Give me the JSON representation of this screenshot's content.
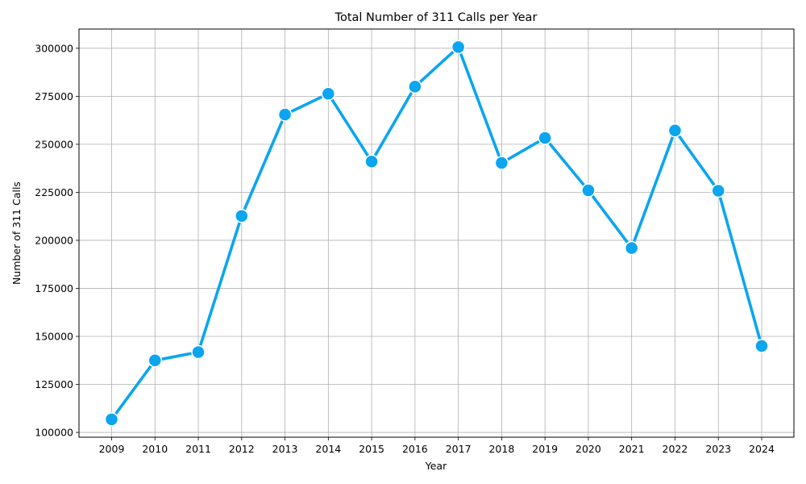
{
  "chart_data": {
    "type": "line",
    "title": "Total Number of 311 Calls per Year",
    "xlabel": "Year",
    "ylabel": "Number of 311 Calls",
    "categories": [
      "2009",
      "2010",
      "2011",
      "2012",
      "2013",
      "2014",
      "2015",
      "2016",
      "2017",
      "2018",
      "2019",
      "2020",
      "2021",
      "2022",
      "2023",
      "2024"
    ],
    "series": [
      {
        "values": [
          106800,
          137500,
          141800,
          212700,
          265500,
          276300,
          241000,
          280000,
          300600,
          240300,
          253300,
          226000,
          196000,
          257200,
          225800,
          145000
        ]
      }
    ],
    "yticks": [
      "100000",
      "125000",
      "150000",
      "175000",
      "200000",
      "225000",
      "250000",
      "275000",
      "300000"
    ],
    "ylim": [
      97500,
      310000
    ],
    "grid": true,
    "line_color": "#0ba5f0",
    "grid_color": "#b0b0b0"
  }
}
